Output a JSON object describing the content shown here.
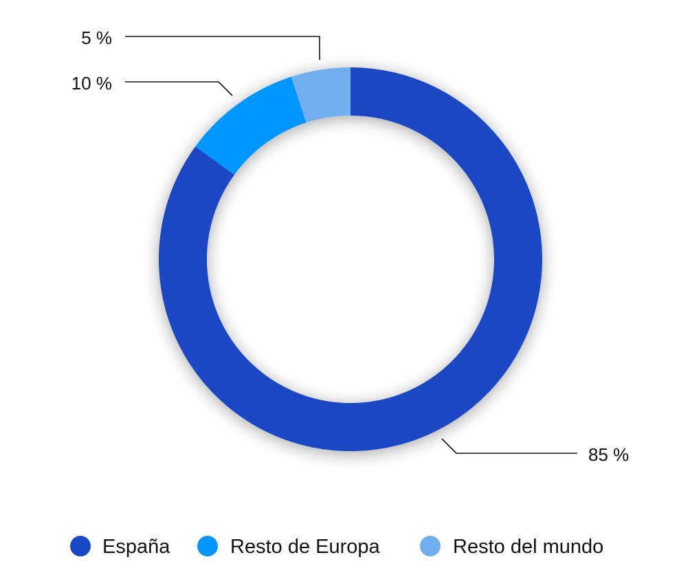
{
  "chart_data": {
    "type": "donut",
    "title": "",
    "categories": [
      "España",
      "Resto de Europa",
      "Resto del mundo"
    ],
    "values": [
      85,
      10,
      5
    ],
    "unit": "%",
    "labels": [
      "85 %",
      "10 %",
      "5 %"
    ],
    "colors": [
      "#1a47c2",
      "#0496ff",
      "#72adee"
    ],
    "legend_position": "bottom",
    "start_angle": "top (12 o'clock), clockwise"
  },
  "legend": {
    "items": [
      {
        "label": "España",
        "color": "#1a47c2"
      },
      {
        "label": "Resto de Europa",
        "color": "#0496ff"
      },
      {
        "label": "Resto del mundo",
        "color": "#72adee"
      }
    ]
  }
}
